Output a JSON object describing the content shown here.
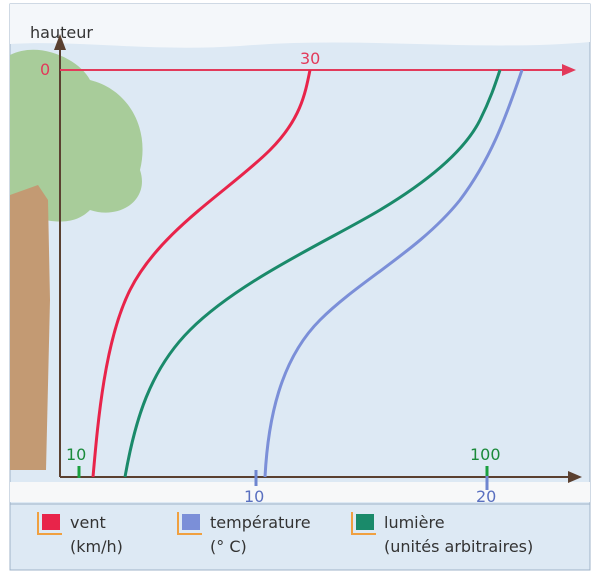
{
  "axis_labels": {
    "vertical": "hauteur",
    "top_zero": "0",
    "top_wind": "30"
  },
  "ticks": {
    "light_low": "10",
    "light_high": "100",
    "temp_low": "10",
    "temp_high": "20"
  },
  "legend": [
    {
      "label": "vent",
      "unit": "(km/h)"
    },
    {
      "label": "température",
      "unit": "(° C)"
    },
    {
      "label": "lumière",
      "unit": "(unités arbitraires)"
    }
  ]
}
